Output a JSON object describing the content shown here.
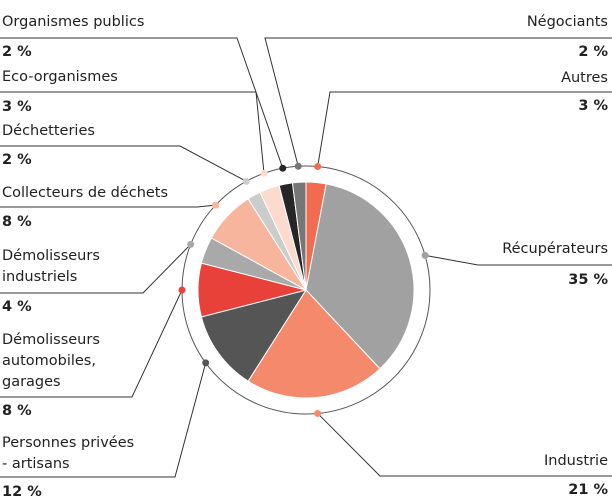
{
  "chart_data": {
    "type": "pie",
    "categories": [
      "Autres",
      "Récupérateurs",
      "Industrie",
      "Personnes privées - artisans",
      "Démolisseurs automobiles, garages",
      "Démolisseurs industriels",
      "Collecteurs de déchets",
      "Déchetteries",
      "Eco-organismes",
      "Organismes publics",
      "Négociants"
    ],
    "values": [
      3,
      35,
      21,
      12,
      8,
      4,
      8,
      2,
      3,
      2,
      2
    ],
    "value_labels": [
      "3 %",
      "35 %",
      "21 %",
      "12 %",
      "8 %",
      "4 %",
      "8 %",
      "2 %",
      "3 %",
      "2 %",
      "2 %"
    ],
    "colors": [
      "#f26a4f",
      "#a1a1a1",
      "#f4896b",
      "#555555",
      "#e8413a",
      "#a9a9a9",
      "#f6b59c",
      "#cccccc",
      "#fcdacd",
      "#262626",
      "#767676"
    ]
  }
}
